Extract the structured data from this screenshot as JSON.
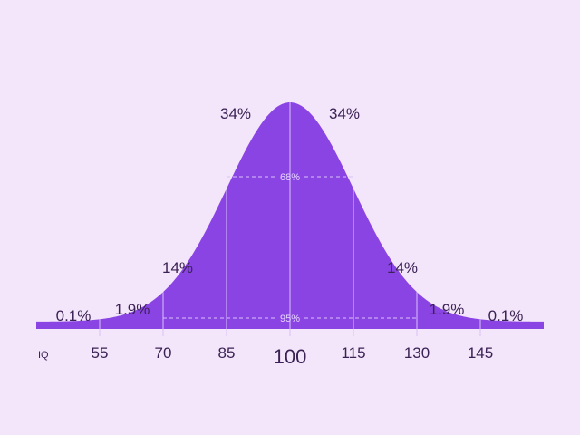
{
  "chart_data": {
    "type": "area",
    "title": "",
    "xlabel": "IQ",
    "ylabel": "",
    "x_ticks": [
      55,
      70,
      85,
      100,
      115,
      130,
      145
    ],
    "mean": 100,
    "sd": 15,
    "xlim": [
      40,
      160
    ],
    "bands": [
      {
        "from": 40,
        "to": 55,
        "value": "0.1%"
      },
      {
        "from": 55,
        "to": 70,
        "value": "1.9%"
      },
      {
        "from": 70,
        "to": 85,
        "value": "14%"
      },
      {
        "from": 85,
        "to": 100,
        "value": "34%"
      },
      {
        "from": 100,
        "to": 115,
        "value": "34%"
      },
      {
        "from": 115,
        "to": 130,
        "value": "14%"
      },
      {
        "from": 130,
        "to": 145,
        "value": "1.9%"
      },
      {
        "from": 145,
        "to": 160,
        "value": "0.1%"
      }
    ],
    "ranges": [
      {
        "from": 85,
        "to": 115,
        "label": "68%"
      },
      {
        "from": 70,
        "to": 130,
        "label": "95%"
      }
    ],
    "colors": {
      "fill": "#8a44e4",
      "background": "#f3e5fa",
      "text": "#3b2254",
      "guide": "#d9c2f7"
    }
  }
}
